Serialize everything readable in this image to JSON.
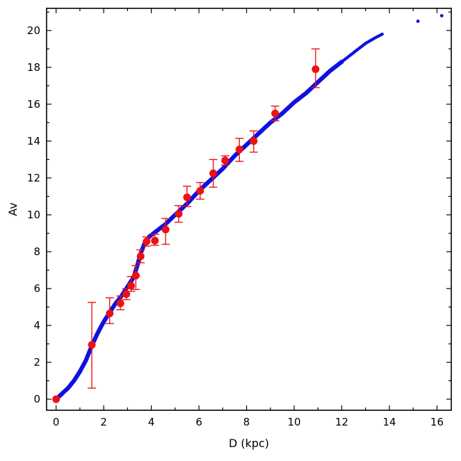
{
  "chart_data": {
    "type": "scatter",
    "title": "",
    "xlabel": "D (kpc)",
    "ylabel": "Av",
    "xlim": [
      -0.4,
      16.6
    ],
    "ylim": [
      -0.6,
      21.2
    ],
    "xticks": [
      0,
      2,
      4,
      6,
      8,
      10,
      12,
      14,
      16
    ],
    "yticks": [
      0,
      2,
      4,
      6,
      8,
      10,
      12,
      14,
      16,
      18,
      20
    ],
    "grid": false,
    "legend": "none",
    "colors": {
      "model": "#1010e0",
      "observed": "#ee1111"
    },
    "series": [
      {
        "type": "line-dots",
        "color": "#1010e0",
        "x": [
          0,
          0.25,
          0.5,
          0.75,
          1.0,
          1.25,
          1.5,
          1.75,
          2.0,
          2.25,
          2.5,
          2.75,
          3.0,
          3.25,
          3.4,
          3.55,
          3.7,
          3.9,
          4.2,
          4.6,
          5.0,
          5.5,
          6.0,
          6.5,
          7.0,
          7.5,
          8.0,
          8.5,
          9.0,
          9.5,
          10.0,
          10.5,
          11.0,
          11.5,
          12.0,
          12.5,
          13.0,
          13.4,
          13.7
        ],
        "y": [
          0,
          0.3,
          0.6,
          1.0,
          1.5,
          2.1,
          2.9,
          3.6,
          4.2,
          4.7,
          5.2,
          5.6,
          6.1,
          6.6,
          7.2,
          7.9,
          8.4,
          8.8,
          9.1,
          9.5,
          10.0,
          10.6,
          11.3,
          11.9,
          12.5,
          13.2,
          13.8,
          14.4,
          15.0,
          15.5,
          16.1,
          16.6,
          17.2,
          17.8,
          18.3,
          18.8,
          19.3,
          19.6,
          19.8
        ]
      },
      {
        "type": "outliers",
        "color": "#1010e0",
        "x": [
          15.2,
          16.2
        ],
        "y": [
          20.5,
          20.8
        ]
      },
      {
        "type": "points-with-errorbars",
        "color": "#ee1111",
        "x": [
          0,
          1.5,
          2.25,
          2.7,
          2.95,
          3.15,
          3.35,
          3.55,
          3.8,
          4.15,
          4.6,
          5.15,
          5.5,
          6.05,
          6.6,
          7.1,
          7.7,
          8.3,
          9.2,
          10.9
        ],
        "y": [
          0,
          2.95,
          4.65,
          5.2,
          5.7,
          6.15,
          6.7,
          7.75,
          8.55,
          8.6,
          9.2,
          10.05,
          10.95,
          11.3,
          12.25,
          12.95,
          13.55,
          14.0,
          15.5,
          17.9
        ],
        "err_low": [
          0.0,
          2.35,
          0.55,
          0.35,
          0.3,
          0.3,
          0.75,
          0.35,
          0.25,
          0.25,
          0.8,
          0.45,
          0.5,
          0.45,
          0.75,
          0.25,
          0.65,
          0.6,
          0.4,
          1.0
        ],
        "err_high": [
          0.0,
          2.3,
          0.85,
          0.4,
          0.3,
          0.5,
          0.55,
          0.35,
          0.25,
          0.35,
          0.6,
          0.45,
          0.6,
          0.45,
          0.75,
          0.25,
          0.6,
          0.55,
          0.4,
          1.1
        ]
      }
    ]
  }
}
